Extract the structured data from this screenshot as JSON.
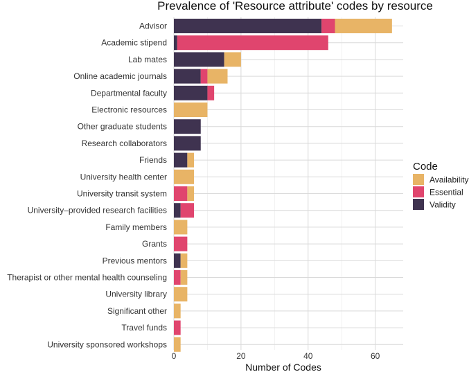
{
  "chart_data": {
    "type": "bar",
    "orientation": "horizontal",
    "stacked": true,
    "title": "Prevalence of 'Resource attribute' codes by resource",
    "xlabel": "Number of Codes",
    "ylabel": "",
    "xlim": [
      0,
      68
    ],
    "xticks": [
      0,
      20,
      40,
      60
    ],
    "grid": true,
    "legend_title": "Code",
    "legend_position": "right",
    "categories": [
      "Advisor",
      "Academic stipend",
      "Lab mates",
      "Online academic journals",
      "Departmental faculty",
      "Electronic resources",
      "Other graduate students",
      "Research collaborators",
      "Friends",
      "University health center",
      "University transit system",
      "University–provided research facilities",
      "Family members",
      "Grants",
      "Previous mentors",
      "Therapist or other mental health counseling",
      "University library",
      "Significant other",
      "Travel funds",
      "University sponsored workshops"
    ],
    "series": [
      {
        "name": "Validity",
        "color": "#3f3350",
        "values": [
          44,
          1,
          15,
          8,
          10,
          0,
          8,
          8,
          4,
          0,
          0,
          2,
          0,
          0,
          2,
          0,
          0,
          0,
          0,
          0
        ]
      },
      {
        "name": "Essential",
        "color": "#e0456e",
        "values": [
          4,
          45,
          0,
          2,
          2,
          0,
          0,
          0,
          0,
          0,
          4,
          4,
          0,
          4,
          0,
          2,
          0,
          0,
          2,
          0
        ]
      },
      {
        "name": "Availability",
        "color": "#e8b466",
        "values": [
          17,
          0,
          5,
          6,
          0,
          10,
          0,
          0,
          2,
          6,
          2,
          0,
          4,
          0,
          2,
          2,
          4,
          2,
          0,
          2
        ]
      }
    ],
    "legend_order": [
      "Availability",
      "Essential",
      "Validity"
    ]
  }
}
